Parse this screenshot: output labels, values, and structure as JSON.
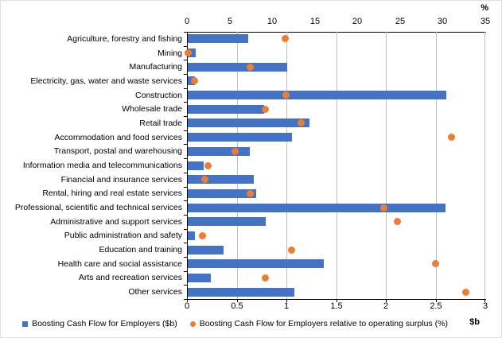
{
  "chart_data": {
    "type": "bar",
    "orientation": "horizontal",
    "title": "",
    "categories": [
      "Agriculture, forestry and fishing",
      "Mining",
      "Manufacturing",
      "Electricity, gas, water and waste services",
      "Construction",
      "Wholesale trade",
      "Retail trade",
      "Accommodation and food services",
      "Transport, postal and warehousing",
      "Information media and telecommunications",
      "Financial and insurance services",
      "Rental, hiring and real estate services",
      "Professional, scientific and technical services",
      "Administrative and support services",
      "Public administration and safety",
      "Education and training",
      "Health care and social assistance",
      "Arts and recreation services",
      "Other services"
    ],
    "series": [
      {
        "name": "Boosting Cash Flow for Employers ($b)",
        "type": "bar",
        "axis": "bottom",
        "marker": "square",
        "color": "#4472C4",
        "values": [
          0.61,
          0.08,
          1.0,
          0.07,
          2.6,
          0.77,
          1.22,
          1.05,
          0.62,
          0.16,
          0.66,
          0.69,
          2.59,
          0.78,
          0.07,
          0.36,
          1.37,
          0.23,
          1.07
        ]
      },
      {
        "name": "Boosting Cash Flow for Employers relative to operating surplus (%)",
        "type": "scatter",
        "axis": "top",
        "marker": "circle",
        "color": "#ED7D31",
        "values": [
          11.5,
          0.1,
          7.4,
          0.9,
          11.6,
          9.2,
          13.4,
          31.0,
          5.6,
          2.5,
          2.1,
          7.4,
          23.1,
          24.7,
          1.8,
          12.3,
          29.2,
          9.2,
          32.7
        ]
      }
    ],
    "top_axis": {
      "title": "%",
      "min": 0,
      "max": 35,
      "ticks": [
        "0",
        "5",
        "10",
        "15",
        "20",
        "25",
        "30",
        "35"
      ]
    },
    "bottom_axis": {
      "title": "$b",
      "min": 0,
      "max": 3,
      "ticks": [
        "0",
        "0.5",
        "1",
        "1.5",
        "2",
        "2.5",
        "3"
      ]
    },
    "grid": "vertical gridlines at 0.5 $b intervals",
    "legend_position": "bottom",
    "colors": {
      "bar": "#4472C4",
      "dot": "#ED7D31",
      "gridline": "#BFBFBF",
      "axis": "#000000"
    }
  }
}
